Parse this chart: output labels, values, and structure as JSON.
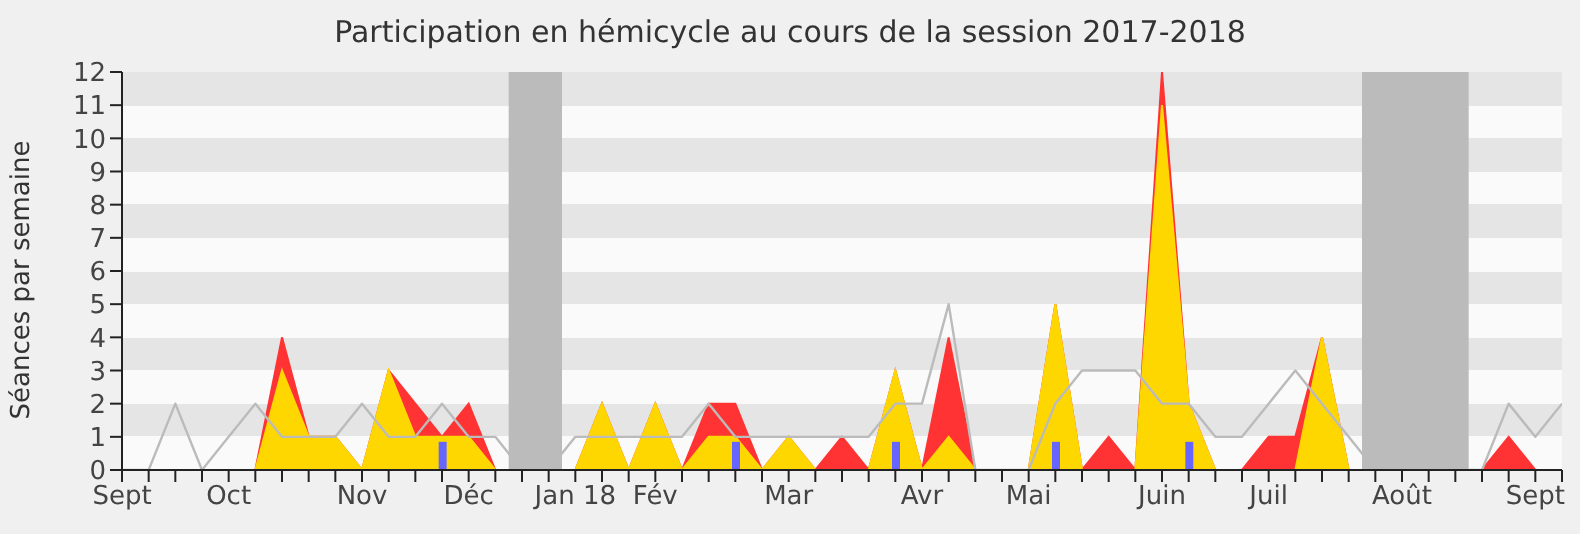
{
  "chart_data": {
    "type": "area",
    "title": "Participation en hémicycle au cours de la session 2017-2018",
    "ylabel": "Séances par semaine",
    "categories": [
      "Sept",
      null,
      null,
      null,
      "Oct",
      null,
      null,
      null,
      null,
      "Nov",
      null,
      null,
      null,
      "Déc",
      null,
      null,
      null,
      "Jan 18",
      null,
      null,
      "Fév",
      null,
      null,
      null,
      null,
      "Mar",
      null,
      null,
      null,
      null,
      "Avr",
      null,
      null,
      null,
      "Mai",
      null,
      null,
      null,
      null,
      "Juin",
      null,
      null,
      null,
      "Juil",
      null,
      null,
      null,
      null,
      "Août",
      null,
      null,
      null,
      null,
      "Sept",
      null
    ],
    "series": [
      {
        "color": "#ff3333",
        "values": [
          0,
          0,
          0,
          0,
          0,
          0,
          4,
          1,
          1,
          0,
          3,
          2,
          1,
          2,
          0,
          0,
          0,
          0,
          2,
          0,
          2,
          0,
          2,
          2,
          0,
          1,
          0,
          1,
          0,
          3,
          0,
          4,
          0,
          0,
          0,
          5,
          0,
          1,
          0,
          12,
          2,
          0,
          0,
          1,
          1,
          4,
          0,
          0,
          0,
          0,
          0,
          0,
          1,
          0,
          0
        ]
      },
      {
        "color": "#ffd700",
        "values": [
          0,
          0,
          0,
          0,
          0,
          0,
          3,
          1,
          1,
          0,
          3,
          1,
          1,
          1,
          0,
          0,
          0,
          0,
          2,
          0,
          2,
          0,
          1,
          1,
          0,
          1,
          0,
          0,
          0,
          3,
          0,
          1,
          0,
          0,
          0,
          5,
          0,
          0,
          0,
          11,
          2,
          0,
          0,
          0,
          0,
          4,
          0,
          0,
          0,
          0,
          0,
          0,
          0,
          0,
          0
        ]
      },
      {
        "type": "line",
        "color": "#bbbbbb",
        "values": [
          0,
          0,
          2,
          0,
          1,
          2,
          1,
          1,
          1,
          2,
          1,
          1,
          2,
          1,
          1,
          0,
          0,
          1,
          1,
          1,
          1,
          1,
          2,
          1,
          1,
          1,
          1,
          1,
          1,
          2,
          2,
          5,
          0,
          0,
          0,
          2,
          3,
          3,
          3,
          2,
          2,
          1,
          1,
          2,
          3,
          2,
          1,
          0,
          0,
          0,
          0,
          0,
          2,
          1,
          2
        ]
      },
      {
        "type": "bar",
        "color": "#6666ff",
        "values": [
          null,
          null,
          null,
          null,
          null,
          null,
          null,
          null,
          null,
          null,
          null,
          null,
          0.85,
          null,
          null,
          null,
          null,
          null,
          null,
          null,
          null,
          null,
          null,
          0.85,
          null,
          null,
          null,
          null,
          null,
          0.85,
          null,
          null,
          null,
          null,
          null,
          0.85,
          null,
          null,
          null,
          null,
          0.85,
          null,
          null,
          null,
          null,
          null,
          null,
          null,
          null,
          null,
          null,
          null,
          null,
          null,
          null
        ]
      }
    ],
    "ylim": [
      0,
      12
    ],
    "yticks": [
      0,
      1,
      2,
      3,
      4,
      5,
      6,
      7,
      8,
      9,
      10,
      11,
      12
    ]
  }
}
